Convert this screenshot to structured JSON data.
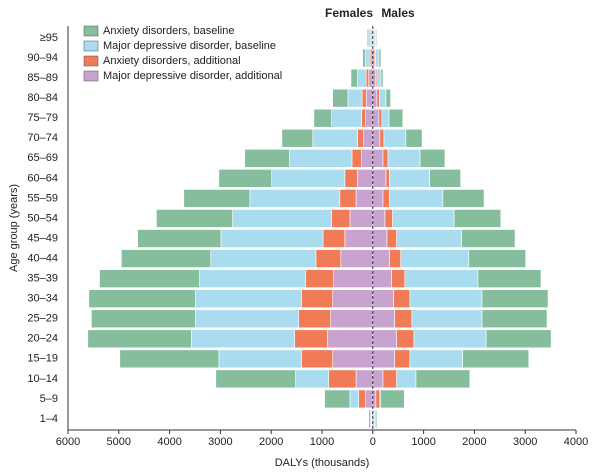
{
  "chart_data": {
    "type": "pyramid",
    "groups": [
      "Females",
      "Males"
    ],
    "xlabel": "DALYs (thousands)",
    "ylabel": "Age group (years)",
    "categories": [
      "≥95",
      "90–94",
      "85–89",
      "80–84",
      "75–79",
      "70–74",
      "65–69",
      "60–64",
      "55–59",
      "50–54",
      "45–49",
      "40–44",
      "35–39",
      "30–34",
      "25–29",
      "20–24",
      "15–19",
      "10–14",
      "5–9",
      "1–4"
    ],
    "series": [
      {
        "name": "Anxiety disorders, baseline",
        "color": "#86bd9d",
        "females": [
          -30,
          -50,
          -130,
          -300,
          -350,
          -610,
          -880,
          -1040,
          -1300,
          -1500,
          -1640,
          -1760,
          -1970,
          -2100,
          -2050,
          -2040,
          -1950,
          -1570,
          -500,
          -30
        ],
        "males": [
          20,
          40,
          40,
          90,
          270,
          320,
          490,
          610,
          810,
          920,
          1050,
          1120,
          1240,
          1300,
          1280,
          1280,
          1300,
          1060,
          470,
          30
        ]
      },
      {
        "name": "Major depressive disorder, baseline",
        "color": "#a9dcef",
        "females": [
          -40,
          -80,
          -170,
          -280,
          -590,
          -880,
          -1230,
          -1440,
          -1770,
          -1950,
          -2010,
          -2070,
          -2090,
          -2090,
          -2030,
          -2030,
          -1630,
          -650,
          -170,
          -20
        ],
        "males": [
          30,
          70,
          80,
          130,
          140,
          430,
          630,
          790,
          1050,
          1210,
          1280,
          1340,
          1440,
          1420,
          1380,
          1420,
          1040,
          380,
          10,
          20
        ]
      },
      {
        "name": "Anxiety disorders, additional",
        "color": "#f07b56",
        "females": [
          -20,
          -30,
          -50,
          -80,
          -80,
          -120,
          -190,
          -250,
          -320,
          -360,
          -430,
          -490,
          -550,
          -610,
          -630,
          -650,
          -610,
          -540,
          -140,
          -10
        ],
        "males": [
          10,
          20,
          30,
          50,
          60,
          80,
          100,
          70,
          130,
          150,
          190,
          220,
          260,
          320,
          340,
          340,
          300,
          270,
          80,
          10
        ]
      },
      {
        "name": "Major depressive disorder, additional",
        "color": "#c9a3d0",
        "females": [
          -20,
          -40,
          -80,
          -130,
          -140,
          -180,
          -220,
          -300,
          -330,
          -450,
          -550,
          -630,
          -770,
          -790,
          -830,
          -890,
          -790,
          -330,
          -140,
          -20
        ],
        "males": [
          15,
          30,
          50,
          80,
          120,
          140,
          200,
          260,
          200,
          240,
          280,
          330,
          370,
          410,
          430,
          470,
          430,
          200,
          60,
          20
        ]
      }
    ],
    "xlim": [
      -6000,
      4000
    ],
    "xticks": [
      {
        "value": -6000,
        "label": "6000"
      },
      {
        "value": -5000,
        "label": "5000"
      },
      {
        "value": -4000,
        "label": "4000"
      },
      {
        "value": -3000,
        "label": "3000"
      },
      {
        "value": -2000,
        "label": "2000"
      },
      {
        "value": -1000,
        "label": "1000"
      },
      0,
      1000,
      2000,
      3000,
      4000
    ]
  }
}
